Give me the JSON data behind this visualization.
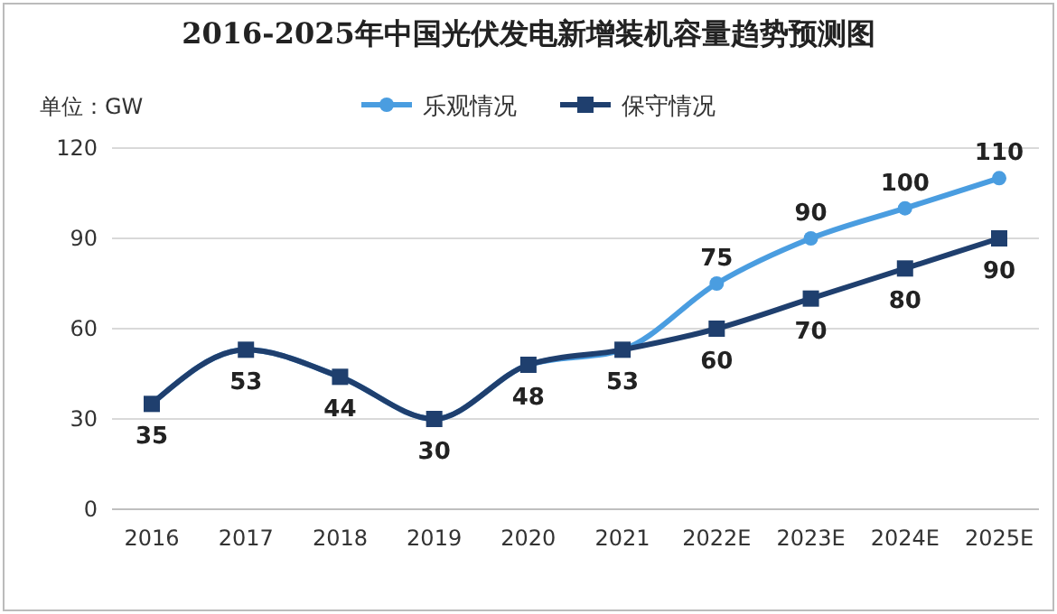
{
  "chart_data": {
    "type": "line",
    "title": "2016-2025年中国光伏发电新增装机容量趋势预测图",
    "ylabel": "单位：GW",
    "categories": [
      "2016",
      "2017",
      "2018",
      "2019",
      "2020",
      "2021",
      "2022E",
      "2023E",
      "2024E",
      "2025E"
    ],
    "series": [
      {
        "name": "乐观情况",
        "color": "#4a9de0",
        "marker": "circle",
        "values": [
          35,
          53,
          44,
          30,
          48,
          53,
          75,
          90,
          100,
          110
        ],
        "value_labels": [
          null,
          null,
          null,
          null,
          null,
          null,
          "75",
          "90",
          "100",
          "110"
        ]
      },
      {
        "name": "保守情况",
        "color": "#1f3f6e",
        "marker": "square",
        "values": [
          35,
          53,
          44,
          30,
          48,
          53,
          60,
          70,
          80,
          90
        ],
        "value_labels": [
          "35",
          "53",
          "44",
          "30",
          "48",
          "53",
          "60",
          "70",
          "80",
          "90"
        ]
      }
    ],
    "ylim": [
      0,
      120
    ],
    "yticks": [
      0,
      30,
      60,
      90,
      120
    ],
    "grid": "y",
    "legend": "top",
    "line_style": "solid"
  }
}
